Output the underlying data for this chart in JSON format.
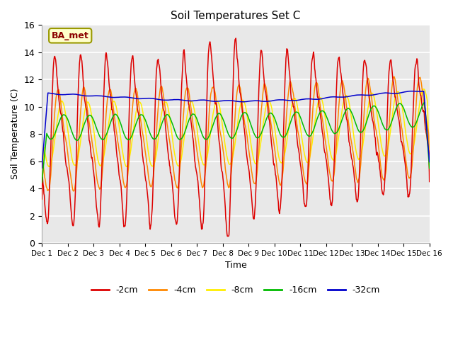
{
  "title": "Soil Temperatures Set C",
  "xlabel": "Time",
  "ylabel": "Soil Temperature (C)",
  "ylim": [
    0,
    16
  ],
  "xlim": [
    0,
    15
  ],
  "annotation": "BA_met",
  "bg_color": "#e8e8e8",
  "grid_color": "#ffffff",
  "colors": {
    "-2cm": "#dd0000",
    "-4cm": "#ff8800",
    "-8cm": "#ffee00",
    "-16cm": "#00bb00",
    "-32cm": "#0000cc"
  },
  "tick_labels": [
    "Dec 1",
    "Dec 2",
    "Dec 3",
    "Dec 4",
    "Dec 5",
    "Dec 6",
    "Dec 7",
    "Dec 8",
    "Dec 9",
    "Dec 10",
    "Dec 11",
    "Dec 12",
    "Dec 13",
    "Dec 14",
    "Dec 15",
    "Dec 16"
  ],
  "n_points": 960
}
